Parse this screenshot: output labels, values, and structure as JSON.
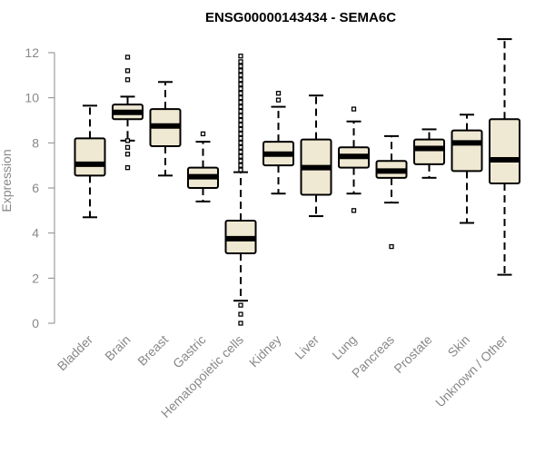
{
  "chart_data": {
    "type": "boxplot",
    "title": "ENSG00000143434 - SEMA6C",
    "xlabel": "",
    "ylabel": "Expression",
    "ylim": [
      0,
      12
    ],
    "yticks": [
      0,
      2,
      4,
      6,
      8,
      10,
      12
    ],
    "box_fill": "#efe8d2",
    "categories": [
      "Bladder",
      "Brain",
      "Breast",
      "Gastric",
      "Hematopoietic cells",
      "Kidney",
      "Liver",
      "Lung",
      "Pancreas",
      "Prostate",
      "Skin",
      "Unknown / Other"
    ],
    "boxes": [
      {
        "category": "Bladder",
        "whisker_low": 4.7,
        "q1": 6.55,
        "median": 7.05,
        "q3": 8.2,
        "whisker_high": 9.65,
        "outliers": []
      },
      {
        "category": "Brain",
        "whisker_low": 8.1,
        "q1": 9.05,
        "median": 9.35,
        "q3": 9.7,
        "whisker_high": 10.05,
        "outliers": [
          11.8,
          11.2,
          10.8,
          8.1,
          7.8,
          7.5,
          6.9
        ]
      },
      {
        "category": "Breast",
        "whisker_low": 6.55,
        "q1": 7.85,
        "median": 8.75,
        "q3": 9.5,
        "whisker_high": 10.7,
        "outliers": []
      },
      {
        "category": "Gastric",
        "whisker_low": 5.4,
        "q1": 6.0,
        "median": 6.5,
        "q3": 6.9,
        "whisker_high": 8.05,
        "outliers": [
          8.4
        ]
      },
      {
        "category": "Hematopoietic cells",
        "whisker_low": 1.0,
        "q1": 3.1,
        "median": 3.75,
        "q3": 4.55,
        "whisker_high": 6.7,
        "outliers": [
          11.85,
          11.6,
          11.4,
          11.2,
          11.0,
          10.8,
          10.6,
          10.4,
          10.2,
          10.0,
          9.8,
          9.6,
          9.4,
          9.2,
          9.0,
          8.8,
          8.6,
          8.4,
          8.2,
          8.0,
          7.8,
          7.6,
          7.4,
          7.2,
          7.0,
          6.8,
          0.8,
          0.4,
          0.0
        ]
      },
      {
        "category": "Kidney",
        "whisker_low": 5.75,
        "q1": 7.0,
        "median": 7.5,
        "q3": 8.05,
        "whisker_high": 9.6,
        "outliers": [
          10.2,
          9.9
        ]
      },
      {
        "category": "Liver",
        "whisker_low": 4.75,
        "q1": 5.7,
        "median": 6.9,
        "q3": 8.15,
        "whisker_high": 10.1,
        "outliers": []
      },
      {
        "category": "Lung",
        "whisker_low": 5.75,
        "q1": 6.9,
        "median": 7.4,
        "q3": 7.8,
        "whisker_high": 8.95,
        "outliers": [
          9.5,
          5.0
        ]
      },
      {
        "category": "Pancreas",
        "whisker_low": 5.35,
        "q1": 6.45,
        "median": 6.75,
        "q3": 7.2,
        "whisker_high": 8.3,
        "outliers": [
          3.4
        ]
      },
      {
        "category": "Prostate",
        "whisker_low": 6.45,
        "q1": 7.05,
        "median": 7.75,
        "q3": 8.15,
        "whisker_high": 8.6,
        "outliers": []
      },
      {
        "category": "Skin",
        "whisker_low": 4.45,
        "q1": 6.75,
        "median": 8.0,
        "q3": 8.55,
        "whisker_high": 9.25,
        "outliers": []
      },
      {
        "category": "Unknown / Other",
        "whisker_low": 2.15,
        "q1": 6.2,
        "median": 7.25,
        "q3": 9.05,
        "whisker_high": 12.6,
        "outliers": []
      }
    ]
  }
}
